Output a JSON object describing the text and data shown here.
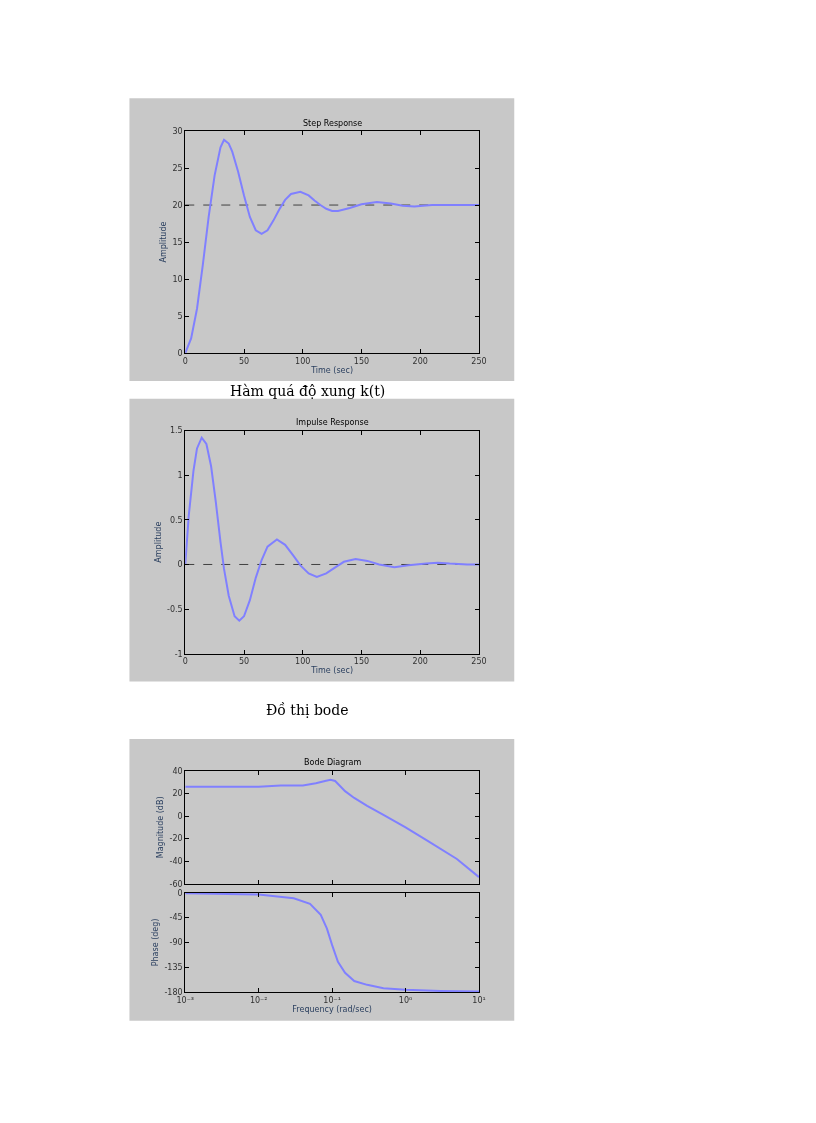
{
  "chart_data": [
    {
      "type": "line",
      "title": "Step Response",
      "xlabel": "Time (sec)",
      "ylabel": "Amplitude",
      "annotations": [
        "Hàm quá độ xung k(t)"
      ],
      "xlim": [
        0,
        250
      ],
      "xticks": [
        0,
        50,
        100,
        150,
        200,
        250
      ],
      "ylim": [
        0,
        30
      ],
      "yticks": [
        0,
        5,
        10,
        15,
        20,
        25,
        30
      ],
      "grid": false,
      "ref_lines": [
        {
          "axis": "y",
          "value": 20,
          "color": "#404040",
          "line_style": "dashed"
        }
      ],
      "series": [
        {
          "color": "#8080ff",
          "x": [
            0,
            5,
            10,
            15,
            20,
            25,
            30,
            33,
            37,
            40,
            45,
            50,
            55,
            60,
            65,
            70,
            75,
            80,
            85,
            90,
            98,
            105,
            110,
            115,
            120,
            125,
            130,
            140,
            150,
            163,
            175,
            185,
            195,
            210,
            225,
            240,
            250
          ],
          "values": [
            0,
            2,
            6,
            12,
            18.5,
            24,
            27.8,
            28.8,
            28.3,
            27.2,
            24.5,
            21.3,
            18.4,
            16.6,
            16.1,
            16.6,
            17.9,
            19.4,
            20.7,
            21.5,
            21.8,
            21.3,
            20.6,
            20,
            19.5,
            19.2,
            19.2,
            19.6,
            20.1,
            20.4,
            20.2,
            19.9,
            19.8,
            20,
            20,
            20,
            20
          ]
        }
      ]
    },
    {
      "type": "line",
      "title": "Impulse Response",
      "xlabel": "Time (sec)",
      "ylabel": "Amplitude",
      "xlim": [
        0,
        250
      ],
      "xticks": [
        0,
        50,
        100,
        150,
        200,
        250
      ],
      "ylim": [
        -1,
        1.5
      ],
      "yticks": [
        -1,
        -0.5,
        0,
        0.5,
        1,
        1.5
      ],
      "grid": false,
      "ref_lines": [
        {
          "axis": "y",
          "value": 0,
          "color": "#404040",
          "line_style": "dashed"
        }
      ],
      "series": [
        {
          "color": "#8080ff",
          "x": [
            0,
            3,
            7,
            10,
            14,
            18,
            22,
            26,
            30,
            33,
            37,
            42,
            46,
            50,
            55,
            60,
            65,
            70,
            78,
            85,
            92,
            98,
            105,
            112,
            120,
            128,
            135,
            145,
            155,
            165,
            178,
            190,
            205,
            215,
            225,
            240,
            250
          ],
          "values": [
            0,
            0.55,
            1.05,
            1.3,
            1.42,
            1.35,
            1.1,
            0.7,
            0.25,
            -0.05,
            -0.35,
            -0.58,
            -0.63,
            -0.58,
            -0.4,
            -0.15,
            0.05,
            0.2,
            0.28,
            0.22,
            0.1,
            -0.01,
            -0.1,
            -0.14,
            -0.1,
            -0.03,
            0.03,
            0.06,
            0.04,
            0,
            -0.03,
            -0.01,
            0.01,
            0.02,
            0.01,
            0,
            0
          ]
        }
      ]
    },
    {
      "type": "line",
      "title": "Bode Diagram",
      "ylabel": "Magnitude (dB)",
      "annotations": [
        "Đồ thị bode"
      ],
      "log": "x",
      "xlim": [
        0.001,
        10
      ],
      "xticks": [
        {
          "value": 0.001,
          "label": null
        },
        {
          "value": 0.01,
          "label": null
        },
        {
          "value": 0.1,
          "label": null
        },
        {
          "value": 1,
          "label": null
        },
        {
          "value": 10,
          "label": null
        }
      ],
      "ylim": [
        -60,
        40
      ],
      "yticks": [
        -60,
        -40,
        -20,
        0,
        20,
        40
      ],
      "tick_labels": "y",
      "grid": false,
      "series": [
        {
          "color": "#8080ff",
          "x": [
            0.001,
            0.003,
            0.01,
            0.02,
            0.04,
            0.06,
            0.08,
            0.095,
            0.11,
            0.15,
            0.2,
            0.3,
            0.5,
            1,
            2,
            5,
            10
          ],
          "values": [
            26,
            26,
            26,
            27,
            27,
            29,
            31,
            32,
            31,
            22,
            16,
            9,
            1,
            -10,
            -22,
            -38,
            -54
          ]
        }
      ]
    },
    {
      "type": "line",
      "xlabel": "Frequency (rad/sec)",
      "ylabel": "Phase (deg)",
      "log": "x",
      "xlim": [
        0.001,
        10
      ],
      "xticks": [
        {
          "value": 0.001,
          "label": "10⁻³"
        },
        {
          "value": 0.01,
          "label": "10⁻²"
        },
        {
          "value": 0.1,
          "label": "10⁻¹"
        },
        {
          "value": 1,
          "label": "10⁰"
        },
        {
          "value": 10,
          "label": "10¹"
        }
      ],
      "ylim": [
        -180,
        0
      ],
      "yticks": [
        -180,
        -135,
        -90,
        -45,
        0
      ],
      "grid": false,
      "series": [
        {
          "color": "#8080ff",
          "x": [
            0.001,
            0.01,
            0.03,
            0.05,
            0.07,
            0.085,
            0.1,
            0.12,
            0.15,
            0.2,
            0.3,
            0.5,
            1,
            3,
            10
          ],
          "values": [
            -1,
            -3,
            -10,
            -20,
            -40,
            -65,
            -95,
            -125,
            -145,
            -160,
            -167,
            -173,
            -176,
            -178,
            -179
          ]
        }
      ]
    }
  ]
}
